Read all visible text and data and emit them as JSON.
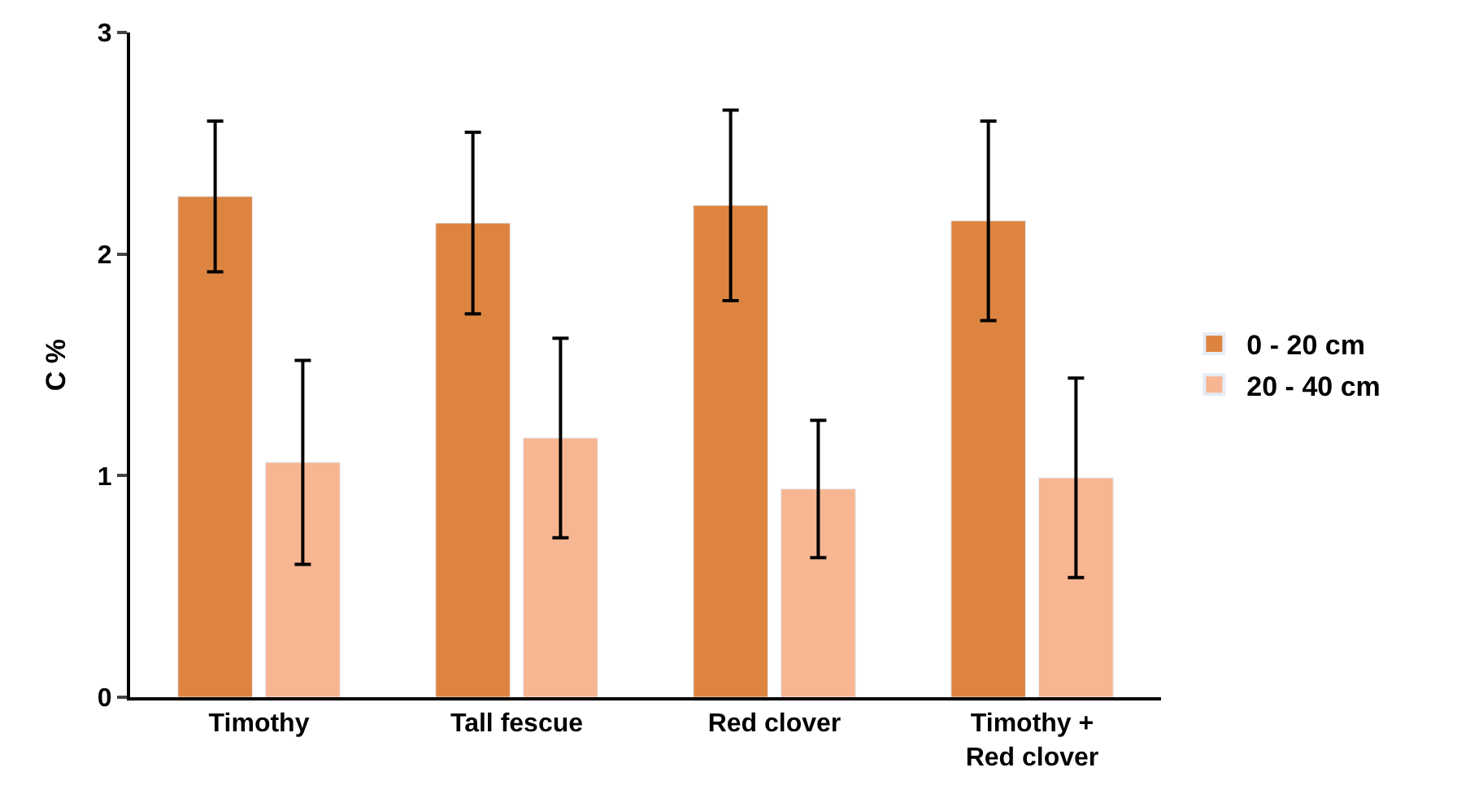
{
  "chart_data": {
    "type": "bar",
    "ylabel": "C %",
    "categories": [
      "Timothy",
      "Tall fescue",
      "Red clover",
      "Timothy +\nRed clover"
    ],
    "series": [
      {
        "name": "0 - 20 cm",
        "color": "#dd8540",
        "values": [
          2.26,
          2.14,
          2.22,
          2.15
        ],
        "errors": [
          0.34,
          0.41,
          0.43,
          0.45
        ]
      },
      {
        "name": "20 - 40 cm",
        "color": "#f8b592",
        "values": [
          1.06,
          1.17,
          0.94,
          0.99
        ],
        "errors": [
          0.46,
          0.45,
          0.31,
          0.45
        ]
      }
    ],
    "ylim": [
      0,
      3
    ],
    "yticks": [
      0,
      1,
      2,
      3
    ],
    "legend": "right"
  }
}
